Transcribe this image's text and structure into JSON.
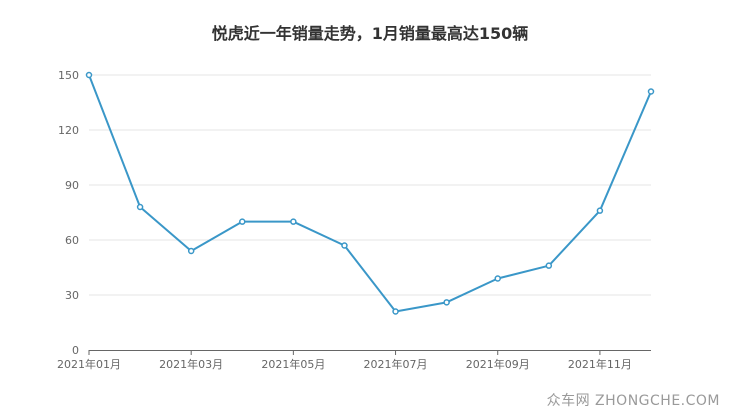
{
  "chart_data": {
    "type": "line",
    "title": "悦虎近一年销量走势，1月销量最高达150辆",
    "xlabel": "",
    "ylabel": "",
    "x": [
      "2021年01月",
      "2021年02月",
      "2021年03月",
      "2021年04月",
      "2021年05月",
      "2021年06月",
      "2021年07月",
      "2021年08月",
      "2021年09月",
      "2021年10月",
      "2021年11月",
      "2021年12月"
    ],
    "x_tick_labels": [
      "2021年01月",
      "2021年03月",
      "2021年05月",
      "2021年07月",
      "2021年09月",
      "2021年11月"
    ],
    "series": [
      {
        "values": [
          150,
          78,
          54,
          70,
          70,
          57,
          21,
          26,
          39,
          46,
          76,
          141
        ]
      }
    ],
    "ylim": [
      0,
      150
    ],
    "y_ticks": [
      0,
      30,
      60,
      90,
      120,
      150
    ],
    "grid": true,
    "line_color": "#3a97c8"
  },
  "watermark": "众车网 ZHONGCHE.COM"
}
